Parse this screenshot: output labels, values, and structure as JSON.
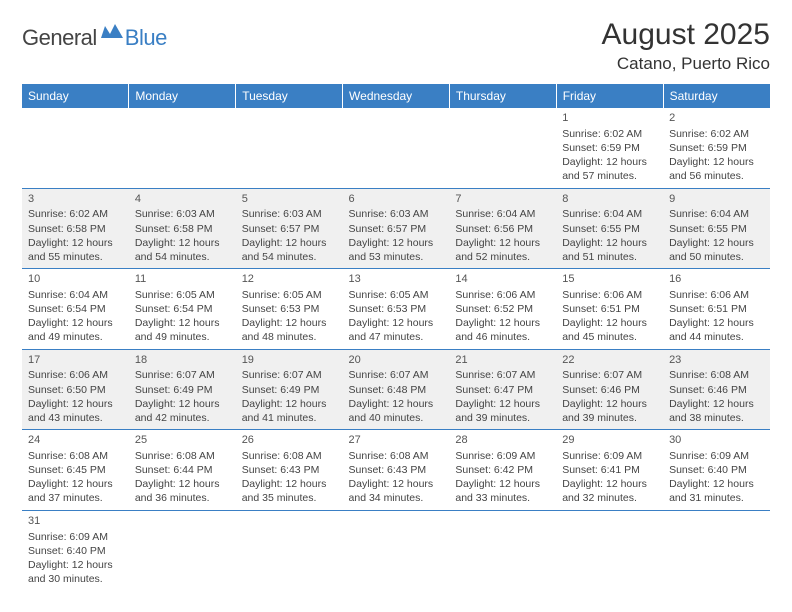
{
  "logo": {
    "general": "General",
    "blue": "Blue"
  },
  "title": "August 2025",
  "location": "Catano, Puerto Rico",
  "colors": {
    "header_bg": "#3a7fc4",
    "header_fg": "#ffffff",
    "shade_bg": "#f0f0f0",
    "text": "#444444",
    "border": "#3a7fc4"
  },
  "day_headers": [
    "Sunday",
    "Monday",
    "Tuesday",
    "Wednesday",
    "Thursday",
    "Friday",
    "Saturday"
  ],
  "weeks": [
    [
      null,
      null,
      null,
      null,
      null,
      {
        "day": "1",
        "sunrise": "Sunrise: 6:02 AM",
        "sunset": "Sunset: 6:59 PM",
        "daylight1": "Daylight: 12 hours",
        "daylight2": "and 57 minutes."
      },
      {
        "day": "2",
        "sunrise": "Sunrise: 6:02 AM",
        "sunset": "Sunset: 6:59 PM",
        "daylight1": "Daylight: 12 hours",
        "daylight2": "and 56 minutes."
      }
    ],
    [
      {
        "day": "3",
        "sunrise": "Sunrise: 6:02 AM",
        "sunset": "Sunset: 6:58 PM",
        "daylight1": "Daylight: 12 hours",
        "daylight2": "and 55 minutes."
      },
      {
        "day": "4",
        "sunrise": "Sunrise: 6:03 AM",
        "sunset": "Sunset: 6:58 PM",
        "daylight1": "Daylight: 12 hours",
        "daylight2": "and 54 minutes."
      },
      {
        "day": "5",
        "sunrise": "Sunrise: 6:03 AM",
        "sunset": "Sunset: 6:57 PM",
        "daylight1": "Daylight: 12 hours",
        "daylight2": "and 54 minutes."
      },
      {
        "day": "6",
        "sunrise": "Sunrise: 6:03 AM",
        "sunset": "Sunset: 6:57 PM",
        "daylight1": "Daylight: 12 hours",
        "daylight2": "and 53 minutes."
      },
      {
        "day": "7",
        "sunrise": "Sunrise: 6:04 AM",
        "sunset": "Sunset: 6:56 PM",
        "daylight1": "Daylight: 12 hours",
        "daylight2": "and 52 minutes."
      },
      {
        "day": "8",
        "sunrise": "Sunrise: 6:04 AM",
        "sunset": "Sunset: 6:55 PM",
        "daylight1": "Daylight: 12 hours",
        "daylight2": "and 51 minutes."
      },
      {
        "day": "9",
        "sunrise": "Sunrise: 6:04 AM",
        "sunset": "Sunset: 6:55 PM",
        "daylight1": "Daylight: 12 hours",
        "daylight2": "and 50 minutes."
      }
    ],
    [
      {
        "day": "10",
        "sunrise": "Sunrise: 6:04 AM",
        "sunset": "Sunset: 6:54 PM",
        "daylight1": "Daylight: 12 hours",
        "daylight2": "and 49 minutes."
      },
      {
        "day": "11",
        "sunrise": "Sunrise: 6:05 AM",
        "sunset": "Sunset: 6:54 PM",
        "daylight1": "Daylight: 12 hours",
        "daylight2": "and 49 minutes."
      },
      {
        "day": "12",
        "sunrise": "Sunrise: 6:05 AM",
        "sunset": "Sunset: 6:53 PM",
        "daylight1": "Daylight: 12 hours",
        "daylight2": "and 48 minutes."
      },
      {
        "day": "13",
        "sunrise": "Sunrise: 6:05 AM",
        "sunset": "Sunset: 6:53 PM",
        "daylight1": "Daylight: 12 hours",
        "daylight2": "and 47 minutes."
      },
      {
        "day": "14",
        "sunrise": "Sunrise: 6:06 AM",
        "sunset": "Sunset: 6:52 PM",
        "daylight1": "Daylight: 12 hours",
        "daylight2": "and 46 minutes."
      },
      {
        "day": "15",
        "sunrise": "Sunrise: 6:06 AM",
        "sunset": "Sunset: 6:51 PM",
        "daylight1": "Daylight: 12 hours",
        "daylight2": "and 45 minutes."
      },
      {
        "day": "16",
        "sunrise": "Sunrise: 6:06 AM",
        "sunset": "Sunset: 6:51 PM",
        "daylight1": "Daylight: 12 hours",
        "daylight2": "and 44 minutes."
      }
    ],
    [
      {
        "day": "17",
        "sunrise": "Sunrise: 6:06 AM",
        "sunset": "Sunset: 6:50 PM",
        "daylight1": "Daylight: 12 hours",
        "daylight2": "and 43 minutes."
      },
      {
        "day": "18",
        "sunrise": "Sunrise: 6:07 AM",
        "sunset": "Sunset: 6:49 PM",
        "daylight1": "Daylight: 12 hours",
        "daylight2": "and 42 minutes."
      },
      {
        "day": "19",
        "sunrise": "Sunrise: 6:07 AM",
        "sunset": "Sunset: 6:49 PM",
        "daylight1": "Daylight: 12 hours",
        "daylight2": "and 41 minutes."
      },
      {
        "day": "20",
        "sunrise": "Sunrise: 6:07 AM",
        "sunset": "Sunset: 6:48 PM",
        "daylight1": "Daylight: 12 hours",
        "daylight2": "and 40 minutes."
      },
      {
        "day": "21",
        "sunrise": "Sunrise: 6:07 AM",
        "sunset": "Sunset: 6:47 PM",
        "daylight1": "Daylight: 12 hours",
        "daylight2": "and 39 minutes."
      },
      {
        "day": "22",
        "sunrise": "Sunrise: 6:07 AM",
        "sunset": "Sunset: 6:46 PM",
        "daylight1": "Daylight: 12 hours",
        "daylight2": "and 39 minutes."
      },
      {
        "day": "23",
        "sunrise": "Sunrise: 6:08 AM",
        "sunset": "Sunset: 6:46 PM",
        "daylight1": "Daylight: 12 hours",
        "daylight2": "and 38 minutes."
      }
    ],
    [
      {
        "day": "24",
        "sunrise": "Sunrise: 6:08 AM",
        "sunset": "Sunset: 6:45 PM",
        "daylight1": "Daylight: 12 hours",
        "daylight2": "and 37 minutes."
      },
      {
        "day": "25",
        "sunrise": "Sunrise: 6:08 AM",
        "sunset": "Sunset: 6:44 PM",
        "daylight1": "Daylight: 12 hours",
        "daylight2": "and 36 minutes."
      },
      {
        "day": "26",
        "sunrise": "Sunrise: 6:08 AM",
        "sunset": "Sunset: 6:43 PM",
        "daylight1": "Daylight: 12 hours",
        "daylight2": "and 35 minutes."
      },
      {
        "day": "27",
        "sunrise": "Sunrise: 6:08 AM",
        "sunset": "Sunset: 6:43 PM",
        "daylight1": "Daylight: 12 hours",
        "daylight2": "and 34 minutes."
      },
      {
        "day": "28",
        "sunrise": "Sunrise: 6:09 AM",
        "sunset": "Sunset: 6:42 PM",
        "daylight1": "Daylight: 12 hours",
        "daylight2": "and 33 minutes."
      },
      {
        "day": "29",
        "sunrise": "Sunrise: 6:09 AM",
        "sunset": "Sunset: 6:41 PM",
        "daylight1": "Daylight: 12 hours",
        "daylight2": "and 32 minutes."
      },
      {
        "day": "30",
        "sunrise": "Sunrise: 6:09 AM",
        "sunset": "Sunset: 6:40 PM",
        "daylight1": "Daylight: 12 hours",
        "daylight2": "and 31 minutes."
      }
    ],
    [
      {
        "day": "31",
        "sunrise": "Sunrise: 6:09 AM",
        "sunset": "Sunset: 6:40 PM",
        "daylight1": "Daylight: 12 hours",
        "daylight2": "and 30 minutes."
      },
      null,
      null,
      null,
      null,
      null,
      null
    ]
  ],
  "shaded_rows": [
    1,
    3
  ]
}
